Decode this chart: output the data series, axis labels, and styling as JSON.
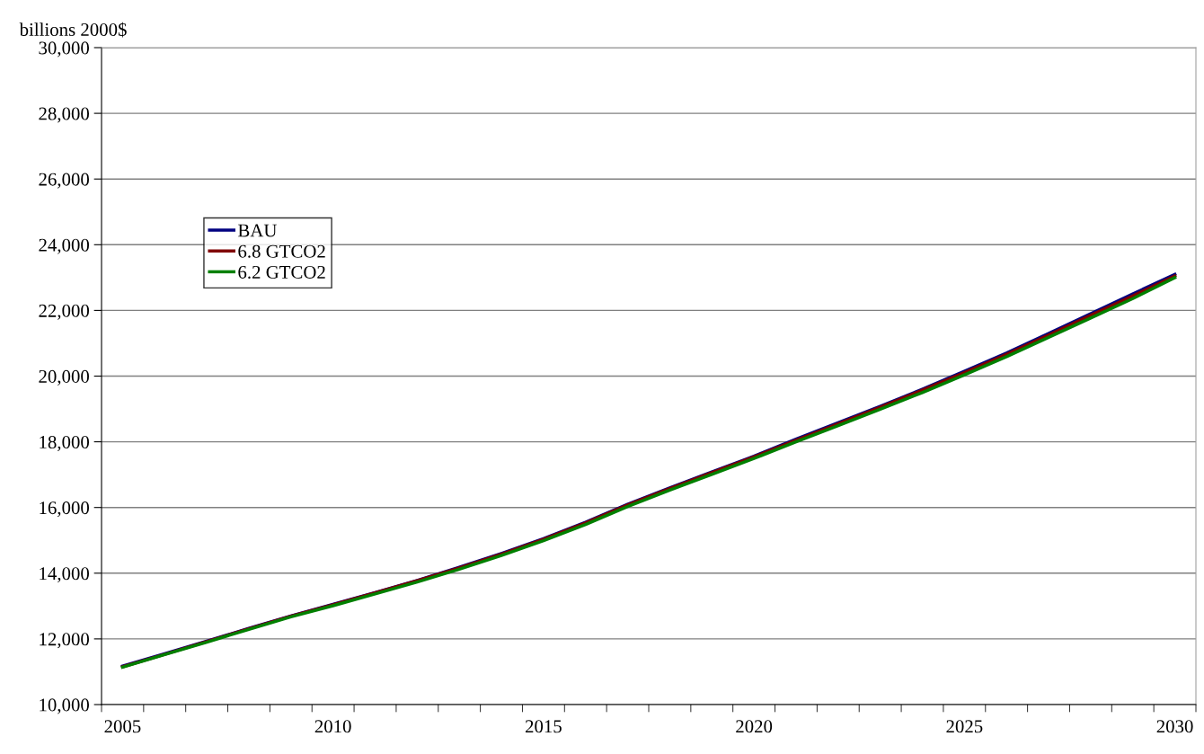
{
  "chart_data": {
    "type": "line",
    "ylabel": "billions 2000$",
    "categories": [
      "2005",
      null,
      null,
      null,
      null,
      "2010",
      null,
      null,
      null,
      null,
      "2015",
      null,
      null,
      null,
      null,
      "2020",
      null,
      null,
      null,
      null,
      "2025",
      null,
      null,
      null,
      null,
      "2030"
    ],
    "series": [
      {
        "name": "BAU",
        "color": "#000080",
        "values": [
          11170,
          11550,
          11930,
          12320,
          12700,
          13050,
          13410,
          13780,
          14180,
          14600,
          15050,
          15550,
          16100,
          16600,
          17080,
          17560,
          18080,
          18580,
          19080,
          19600,
          20150,
          20700,
          21300,
          21900,
          22500,
          23100
        ]
      },
      {
        "name": "6.8 GTCO2",
        "color": "#800000",
        "values": [
          11150,
          11530,
          11920,
          12310,
          12690,
          13040,
          13400,
          13770,
          14160,
          14580,
          15030,
          15530,
          16080,
          16580,
          17060,
          17540,
          18050,
          18550,
          19050,
          19570,
          20110,
          20660,
          21250,
          21850,
          22440,
          23050
        ]
      },
      {
        "name": "6.2 GTCO2",
        "color": "#008000",
        "values": [
          11140,
          11520,
          11900,
          12290,
          12670,
          13010,
          13370,
          13730,
          14120,
          14540,
          14990,
          15480,
          16030,
          16530,
          17010,
          17490,
          18000,
          18490,
          18990,
          19500,
          20040,
          20590,
          21180,
          21770,
          22360,
          23000
        ]
      }
    ],
    "ylim": [
      10000,
      30000
    ],
    "yticks": [
      {
        "value": 10000,
        "label": "10,000"
      },
      {
        "value": 12000,
        "label": "12,000"
      },
      {
        "value": 14000,
        "label": "14,000"
      },
      {
        "value": 16000,
        "label": "16,000"
      },
      {
        "value": 18000,
        "label": "18,000"
      },
      {
        "value": 20000,
        "label": "20,000"
      },
      {
        "value": 22000,
        "label": "22,000"
      },
      {
        "value": 24000,
        "label": "24,000"
      },
      {
        "value": 26000,
        "label": "26,000"
      },
      {
        "value": 28000,
        "label": "28,000"
      },
      {
        "value": 30000,
        "label": "30,000"
      }
    ],
    "grid": "y",
    "legend": "top left",
    "line_style": "solid"
  }
}
